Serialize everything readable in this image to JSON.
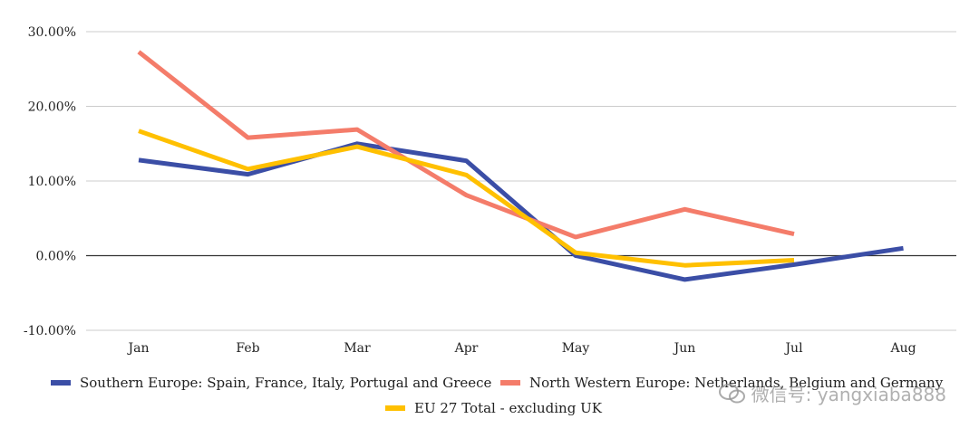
{
  "chart_data": {
    "type": "line",
    "categories": [
      "Jan",
      "Feb",
      "Mar",
      "Apr",
      "May",
      "Jun",
      "Jul",
      "Aug"
    ],
    "y_ticks": [
      "30.00%",
      "20.00%",
      "10.00%",
      "0.00%",
      "-10.00%"
    ],
    "ylim": [
      -10,
      30
    ],
    "grid": true,
    "legend_position": "bottom",
    "series": [
      {
        "name": "Southern Europe: Spain, France, Italy, Portugal and Greece",
        "color": "#3B4EA6",
        "values": [
          12.8,
          10.9,
          15.0,
          12.7,
          0.0,
          -3.2,
          -1.2,
          1.0
        ]
      },
      {
        "name": "North Western Europe: Netherlands, Belgium and Germany",
        "color": "#F47C6A",
        "values": [
          27.3,
          15.8,
          16.9,
          8.1,
          2.5,
          6.2,
          2.9,
          null
        ]
      },
      {
        "name": "EU 27 Total - excluding UK",
        "color": "#FFC000",
        "values": [
          16.7,
          11.6,
          14.6,
          10.8,
          0.4,
          -1.3,
          -0.6,
          null
        ]
      }
    ]
  },
  "watermark": {
    "text": "微信号: yangxiaba888",
    "icon": "wechat-icon"
  }
}
